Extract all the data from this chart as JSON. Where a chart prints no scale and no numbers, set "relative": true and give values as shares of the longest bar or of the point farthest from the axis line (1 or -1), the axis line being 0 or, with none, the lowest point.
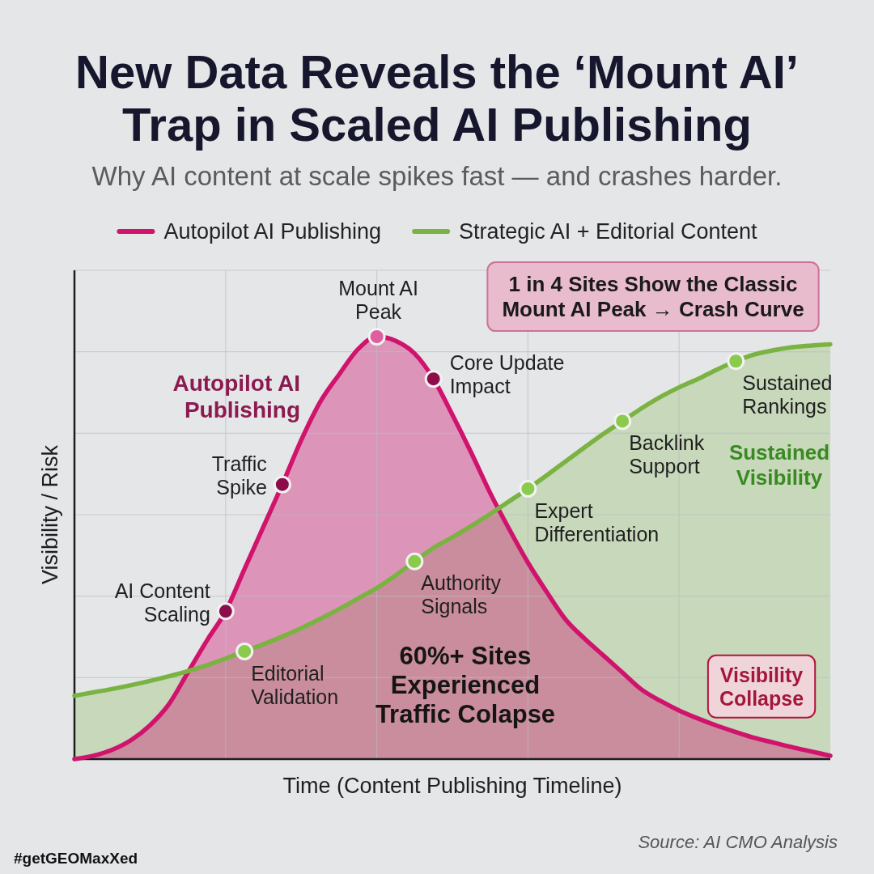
{
  "chart_data": {
    "type": "area",
    "title": "New Data Reveals the ‘Mount AI’ Trap in Scaled AI Publishing",
    "subtitle": "Why AI content at scale spikes fast — and crashes harder.",
    "xlabel": "Time (Content Publishing Timeline)",
    "ylabel": "Visibility / Risk",
    "annotations": [
      "AI Content Scaling",
      "Traffic Spike",
      "Mount AI Peak",
      "Core Update Impact",
      "Editorial Validation",
      "Authority Signals",
      "Expert Differentiation",
      "Backlink Support",
      "Sustained Rankings",
      "Autopilot AI Publishing",
      "Sustained Visibility",
      "1 in 4 Sites Show the Classic Mount AI Peak → Crash Curve",
      "60%+ Sites Experienced Traffic Colapse",
      "Visibility Collapse",
      "Source: AI CMO Analysis",
      "#getGEOMaxXed"
    ],
    "relative": true,
    "grid": true,
    "legend": "top",
    "categories": [
      null,
      null,
      null,
      null,
      null,
      null,
      null,
      null,
      null,
      null,
      null,
      null,
      null,
      null,
      null,
      null,
      null,
      null,
      null,
      null,
      null,
      null,
      null,
      null,
      null,
      null,
      null,
      null,
      null,
      null,
      null,
      null,
      null,
      null,
      null,
      null,
      null,
      null,
      null,
      null,
      null
    ],
    "series": [
      {
        "name": "Autopilot AI Publishing",
        "color": "#d0136d",
        "values": [
          0,
          0.008,
          0.022,
          0.045,
          0.08,
          0.13,
          0.205,
          0.28,
          0.35,
          0.45,
          0.55,
          0.65,
          0.755,
          0.845,
          0.91,
          0.97,
          1,
          0.99,
          0.96,
          0.9,
          0.815,
          0.725,
          0.63,
          0.545,
          0.465,
          0.395,
          0.33,
          0.285,
          0.245,
          0.205,
          0.165,
          0.138,
          0.115,
          0.096,
          0.079,
          0.064,
          0.05,
          0.039,
          0.028,
          0.018,
          0.008
        ]
      },
      {
        "name": "Strategic AI + Editorial Content",
        "color": "#7ab342",
        "values": [
          0.15,
          0.158,
          0.166,
          0.175,
          0.185,
          0.196,
          0.208,
          0.222,
          0.238,
          0.255,
          0.272,
          0.29,
          0.31,
          0.332,
          0.355,
          0.38,
          0.405,
          0.435,
          0.468,
          0.5,
          0.525,
          0.552,
          0.58,
          0.61,
          0.64,
          0.672,
          0.705,
          0.738,
          0.77,
          0.8,
          0.83,
          0.857,
          0.88,
          0.9,
          0.922,
          0.942,
          0.958,
          0.968,
          0.975,
          0.979,
          0.982
        ]
      }
    ]
  }
}
